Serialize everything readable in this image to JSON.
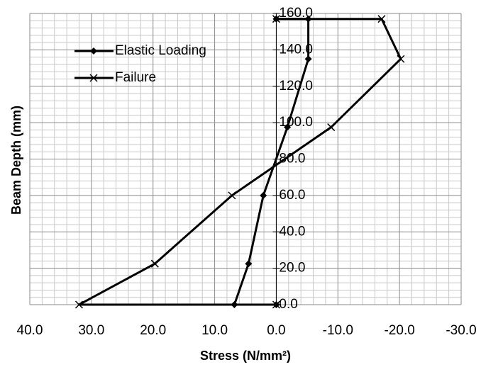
{
  "chart_data": {
    "type": "line",
    "x_label": "Stress (N/mm²)",
    "y_label": "Beam Depth (mm)",
    "xlim": [
      40,
      -30
    ],
    "ylim": [
      0,
      160
    ],
    "xticks": [
      {
        "value": 40,
        "label": "40.0"
      },
      {
        "value": 30,
        "label": "30.0"
      },
      {
        "value": 20,
        "label": "20.0"
      },
      {
        "value": 10,
        "label": "10.0"
      },
      {
        "value": 0,
        "label": "0.0"
      },
      {
        "value": -10,
        "label": "-10.0"
      },
      {
        "value": -20,
        "label": "-20.0"
      },
      {
        "value": -30,
        "label": "-30.0"
      }
    ],
    "yticks": [
      {
        "value": 0,
        "label": "0.0"
      },
      {
        "value": 20,
        "label": "20.0"
      },
      {
        "value": 40,
        "label": "40.0"
      },
      {
        "value": 60,
        "label": "60.0"
      },
      {
        "value": 80,
        "label": "80.0"
      },
      {
        "value": 100,
        "label": "100.0"
      },
      {
        "value": 120,
        "label": "120.0"
      },
      {
        "value": 140,
        "label": "140.0"
      },
      {
        "value": 160,
        "label": "160.0"
      }
    ],
    "grid": true,
    "minor_grid": true,
    "legend": "upper left",
    "series": [
      {
        "name": "Elastic Loading",
        "color": "#000000",
        "marker": "diamond",
        "x": [
          0,
          6.8,
          4.5,
          2.1,
          -1.8,
          -5.2,
          -5.2,
          0
        ],
        "values": [
          0,
          0,
          22.5,
          60,
          97.5,
          135,
          157,
          157
        ]
      },
      {
        "name": "Failure",
        "color": "#000000",
        "marker": "x",
        "x": [
          0,
          32,
          19.7,
          7.2,
          -8.9,
          -20.2,
          -17.1,
          0
        ],
        "values": [
          0,
          0,
          22.5,
          60,
          97.5,
          135,
          157,
          157
        ]
      }
    ]
  }
}
